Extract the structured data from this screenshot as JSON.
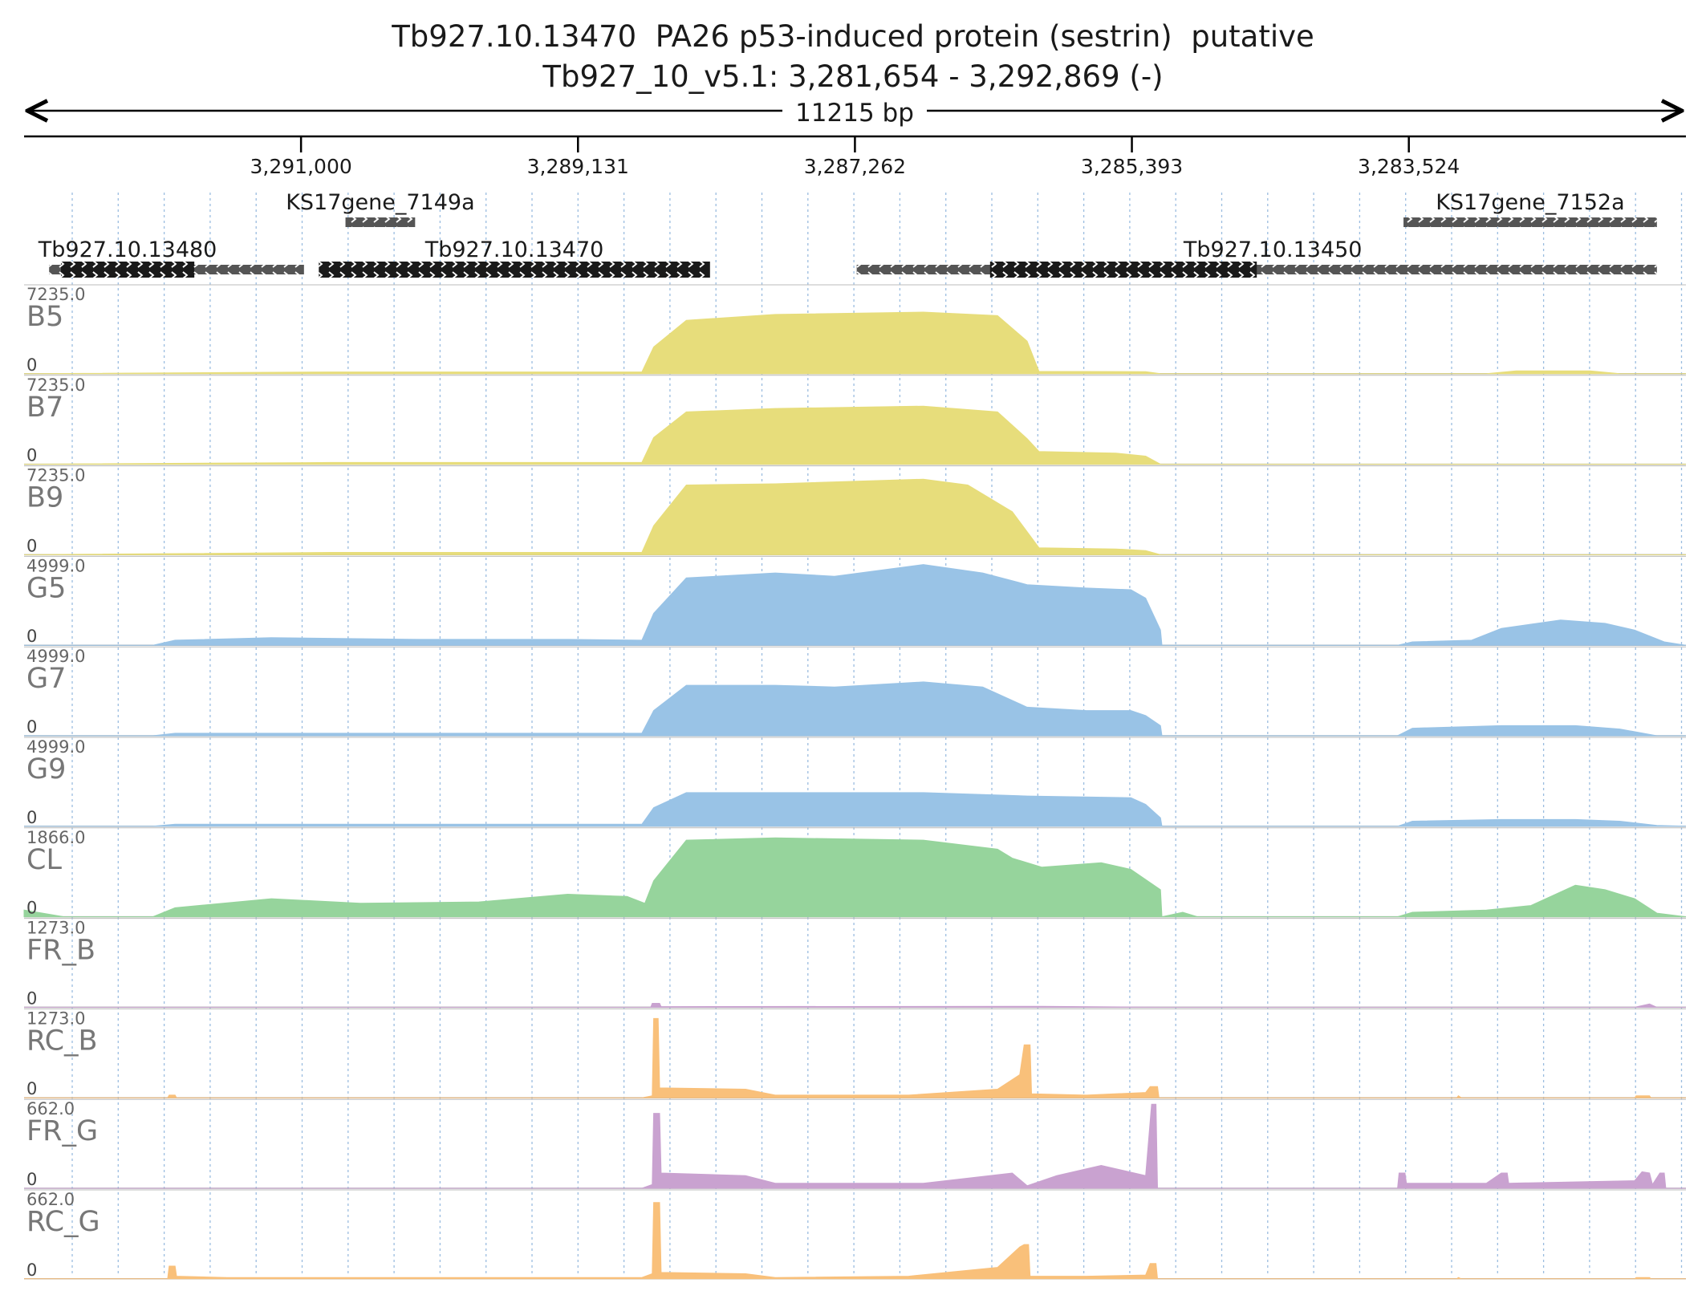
{
  "header": {
    "title": "Tb927.10.13470  PA26 p53-induced protein (sestrin)  putative",
    "locus": "Tb927_10_v5.1: 3,281,654 - 3,292,869 (-)",
    "span_label": "11215 bp"
  },
  "colors": {
    "B": "#e7dd7b",
    "G": "#99c3e6",
    "CL": "#96d49c",
    "FR": "#c9a2d0",
    "RC": "#f9c07a",
    "gene_dark": "#1a1a1a",
    "gene_light": "#555555",
    "grid": "#9bbde0"
  },
  "chart_data": {
    "type": "area",
    "x_axis": {
      "ticks": [
        "3,291,000",
        "3,289,131",
        "3,287,262",
        "3,285,393",
        "3,283,524"
      ],
      "tick_values": [
        3291000,
        3289131,
        3287262,
        3285393,
        3283524
      ],
      "xlim": [
        3292869,
        3281654
      ],
      "reversed": true
    },
    "genes": [
      {
        "name": "KS17gene_7149a",
        "start": 3290700,
        "end": 3290230,
        "row": 1,
        "kind": "light"
      },
      {
        "name": "Tb927.10.13480",
        "start": 3292700,
        "end": 3290980,
        "row": 2,
        "kind": "light",
        "core_start": 3292620,
        "core_end": 3291720
      },
      {
        "name": "Tb927.10.13470",
        "start": 3290880,
        "end": 3288240,
        "row": 2,
        "kind": "dark"
      },
      {
        "name": "Tb927.10.13450",
        "start": 3287250,
        "end": 3281850,
        "row": 2,
        "kind": "light",
        "core_start": 3286350,
        "core_end": 3284550
      },
      {
        "name": "KS17gene_7152a",
        "start": 3283560,
        "end": 3281850,
        "row": 1,
        "kind": "light"
      }
    ],
    "tracks": [
      {
        "name": "B5",
        "max": "7235.0",
        "min": "0",
        "group": "B",
        "ymax": 7235,
        "points": [
          [
            3292869,
            0
          ],
          [
            3290800,
            150
          ],
          [
            3288700,
            150
          ],
          [
            3288620,
            2300
          ],
          [
            3288400,
            4600
          ],
          [
            3287800,
            5100
          ],
          [
            3286800,
            5300
          ],
          [
            3286300,
            5000
          ],
          [
            3286100,
            2800
          ],
          [
            3286020,
            200
          ],
          [
            3285300,
            180
          ],
          [
            3285200,
            0
          ],
          [
            3284200,
            0
          ],
          [
            3283000,
            0
          ],
          [
            3282800,
            250
          ],
          [
            3282300,
            250
          ],
          [
            3282100,
            0
          ],
          [
            3281654,
            0
          ]
        ]
      },
      {
        "name": "B7",
        "max": "7235.0",
        "min": "0",
        "group": "B",
        "ymax": 7235,
        "points": [
          [
            3292869,
            0
          ],
          [
            3290800,
            150
          ],
          [
            3288700,
            150
          ],
          [
            3288620,
            2300
          ],
          [
            3288400,
            4500
          ],
          [
            3287800,
            4800
          ],
          [
            3286800,
            5000
          ],
          [
            3286300,
            4500
          ],
          [
            3286100,
            2200
          ],
          [
            3286020,
            1100
          ],
          [
            3285500,
            950
          ],
          [
            3285300,
            700
          ],
          [
            3285200,
            0
          ],
          [
            3284200,
            0
          ],
          [
            3281654,
            0
          ]
        ]
      },
      {
        "name": "B9",
        "max": "7235.0",
        "min": "0",
        "group": "B",
        "ymax": 7235,
        "points": [
          [
            3292869,
            0
          ],
          [
            3290800,
            200
          ],
          [
            3288700,
            200
          ],
          [
            3288620,
            2500
          ],
          [
            3288400,
            6000
          ],
          [
            3287800,
            6100
          ],
          [
            3286800,
            6500
          ],
          [
            3286500,
            6000
          ],
          [
            3286200,
            3700
          ],
          [
            3286020,
            600
          ],
          [
            3285500,
            500
          ],
          [
            3285300,
            350
          ],
          [
            3285200,
            0
          ],
          [
            3284200,
            0
          ],
          [
            3281654,
            0
          ]
        ]
      },
      {
        "name": "G5",
        "max": "4999.0",
        "min": "0",
        "group": "G",
        "ymax": 4999,
        "points": [
          [
            3292869,
            0
          ],
          [
            3292000,
            0
          ],
          [
            3291850,
            300
          ],
          [
            3291200,
            450
          ],
          [
            3290200,
            350
          ],
          [
            3289200,
            350
          ],
          [
            3288700,
            300
          ],
          [
            3288620,
            1900
          ],
          [
            3288400,
            4000
          ],
          [
            3287800,
            4300
          ],
          [
            3287400,
            4100
          ],
          [
            3286800,
            4800
          ],
          [
            3286400,
            4300
          ],
          [
            3286100,
            3600
          ],
          [
            3285700,
            3400
          ],
          [
            3285400,
            3300
          ],
          [
            3285300,
            2800
          ],
          [
            3285200,
            900
          ],
          [
            3285190,
            0
          ],
          [
            3284200,
            0
          ],
          [
            3283600,
            0
          ],
          [
            3283500,
            200
          ],
          [
            3283100,
            300
          ],
          [
            3282900,
            1000
          ],
          [
            3282500,
            1500
          ],
          [
            3282200,
            1300
          ],
          [
            3282000,
            900
          ],
          [
            3281800,
            200
          ],
          [
            3281654,
            0
          ]
        ]
      },
      {
        "name": "G7",
        "max": "4999.0",
        "min": "0",
        "group": "G",
        "ymax": 4999,
        "points": [
          [
            3292869,
            0
          ],
          [
            3292000,
            0
          ],
          [
            3291850,
            150
          ],
          [
            3289200,
            150
          ],
          [
            3288700,
            150
          ],
          [
            3288620,
            1500
          ],
          [
            3288400,
            3000
          ],
          [
            3287800,
            3000
          ],
          [
            3287400,
            2900
          ],
          [
            3286800,
            3200
          ],
          [
            3286400,
            2900
          ],
          [
            3286100,
            1700
          ],
          [
            3285700,
            1500
          ],
          [
            3285400,
            1500
          ],
          [
            3285300,
            1200
          ],
          [
            3285200,
            600
          ],
          [
            3285190,
            0
          ],
          [
            3283600,
            0
          ],
          [
            3283500,
            450
          ],
          [
            3282900,
            600
          ],
          [
            3282400,
            600
          ],
          [
            3282100,
            400
          ],
          [
            3281850,
            0
          ],
          [
            3281654,
            0
          ]
        ]
      },
      {
        "name": "G9",
        "max": "4999.0",
        "min": "0",
        "group": "G",
        "ymax": 4999,
        "points": [
          [
            3292869,
            0
          ],
          [
            3292000,
            0
          ],
          [
            3291850,
            120
          ],
          [
            3288700,
            120
          ],
          [
            3288620,
            1100
          ],
          [
            3288400,
            2000
          ],
          [
            3287800,
            2000
          ],
          [
            3286800,
            2000
          ],
          [
            3286100,
            1800
          ],
          [
            3285400,
            1700
          ],
          [
            3285300,
            1300
          ],
          [
            3285200,
            500
          ],
          [
            3285190,
            0
          ],
          [
            3283600,
            0
          ],
          [
            3283500,
            300
          ],
          [
            3282900,
            400
          ],
          [
            3282400,
            400
          ],
          [
            3282100,
            300
          ],
          [
            3281850,
            50
          ],
          [
            3281654,
            0
          ]
        ]
      },
      {
        "name": "CL",
        "max": "1866.0",
        "min": "0",
        "group": "CL",
        "ymax": 1866,
        "points": [
          [
            3292869,
            150
          ],
          [
            3292600,
            0
          ],
          [
            3292000,
            0
          ],
          [
            3291850,
            200
          ],
          [
            3291200,
            400
          ],
          [
            3290600,
            300
          ],
          [
            3289800,
            330
          ],
          [
            3289200,
            500
          ],
          [
            3288800,
            450
          ],
          [
            3288680,
            300
          ],
          [
            3288620,
            800
          ],
          [
            3288400,
            1700
          ],
          [
            3287800,
            1750
          ],
          [
            3286800,
            1700
          ],
          [
            3286300,
            1500
          ],
          [
            3286200,
            1300
          ],
          [
            3286000,
            1100
          ],
          [
            3285600,
            1200
          ],
          [
            3285400,
            1050
          ],
          [
            3285200,
            600
          ],
          [
            3285190,
            0
          ],
          [
            3285050,
            100
          ],
          [
            3284950,
            0
          ],
          [
            3283600,
            0
          ],
          [
            3283500,
            100
          ],
          [
            3283000,
            150
          ],
          [
            3282700,
            250
          ],
          [
            3282400,
            700
          ],
          [
            3282200,
            600
          ],
          [
            3282000,
            400
          ],
          [
            3281850,
            80
          ],
          [
            3281654,
            0
          ]
        ]
      },
      {
        "name": "FR_B",
        "max": "1273.0",
        "min": "0",
        "group": "FR",
        "ymax": 1273,
        "points": [
          [
            3292869,
            0
          ],
          [
            3288640,
            0
          ],
          [
            3288630,
            60
          ],
          [
            3288580,
            60
          ],
          [
            3288570,
            10
          ],
          [
            3286000,
            15
          ],
          [
            3285200,
            0
          ],
          [
            3282000,
            0
          ],
          [
            3281900,
            50
          ],
          [
            3281850,
            0
          ],
          [
            3281654,
            0
          ]
        ]
      },
      {
        "name": "RC_B",
        "max": "1273.0",
        "min": "0",
        "group": "RC",
        "ymax": 1273,
        "points": [
          [
            3292869,
            0
          ],
          [
            3291900,
            0
          ],
          [
            3291890,
            40
          ],
          [
            3291850,
            40
          ],
          [
            3291840,
            0
          ],
          [
            3288700,
            0
          ],
          [
            3288630,
            30
          ],
          [
            3288620,
            1200
          ],
          [
            3288590,
            1200
          ],
          [
            3288580,
            150
          ],
          [
            3288000,
            130
          ],
          [
            3287800,
            40
          ],
          [
            3286900,
            40
          ],
          [
            3286300,
            130
          ],
          [
            3286150,
            350
          ],
          [
            3286120,
            800
          ],
          [
            3286080,
            800
          ],
          [
            3286070,
            60
          ],
          [
            3285700,
            40
          ],
          [
            3285300,
            80
          ],
          [
            3285270,
            170
          ],
          [
            3285220,
            170
          ],
          [
            3285210,
            0
          ],
          [
            3283200,
            0
          ],
          [
            3283190,
            30
          ],
          [
            3283170,
            0
          ],
          [
            3282000,
            0
          ],
          [
            3281990,
            30
          ],
          [
            3281900,
            30
          ],
          [
            3281890,
            0
          ],
          [
            3281654,
            0
          ]
        ]
      },
      {
        "name": "FR_G",
        "max": "662.0",
        "min": "0",
        "group": "FR",
        "ymax": 662,
        "points": [
          [
            3292869,
            0
          ],
          [
            3288700,
            0
          ],
          [
            3288630,
            30
          ],
          [
            3288620,
            590
          ],
          [
            3288580,
            590
          ],
          [
            3288570,
            120
          ],
          [
            3288000,
            100
          ],
          [
            3287800,
            40
          ],
          [
            3286800,
            40
          ],
          [
            3286200,
            120
          ],
          [
            3286100,
            20
          ],
          [
            3285900,
            100
          ],
          [
            3285600,
            180
          ],
          [
            3285300,
            100
          ],
          [
            3285260,
            680
          ],
          [
            3285230,
            680
          ],
          [
            3285220,
            0
          ],
          [
            3283600,
            0
          ],
          [
            3283590,
            120
          ],
          [
            3283550,
            120
          ],
          [
            3283540,
            40
          ],
          [
            3283000,
            40
          ],
          [
            3282900,
            120
          ],
          [
            3282860,
            120
          ],
          [
            3282850,
            40
          ],
          [
            3282000,
            60
          ],
          [
            3281950,
            130
          ],
          [
            3281900,
            120
          ],
          [
            3281880,
            30
          ],
          [
            3281830,
            120
          ],
          [
            3281800,
            120
          ],
          [
            3281790,
            0
          ],
          [
            3281654,
            0
          ]
        ]
      },
      {
        "name": "RC_G",
        "max": "662.0",
        "min": "0",
        "group": "RC",
        "ymax": 662,
        "points": [
          [
            3292869,
            0
          ],
          [
            3291900,
            0
          ],
          [
            3291890,
            100
          ],
          [
            3291850,
            100
          ],
          [
            3291840,
            20
          ],
          [
            3291500,
            10
          ],
          [
            3288700,
            10
          ],
          [
            3288630,
            40
          ],
          [
            3288620,
            600
          ],
          [
            3288580,
            600
          ],
          [
            3288570,
            50
          ],
          [
            3288000,
            40
          ],
          [
            3287800,
            10
          ],
          [
            3286900,
            20
          ],
          [
            3286300,
            90
          ],
          [
            3286150,
            250
          ],
          [
            3286120,
            270
          ],
          [
            3286090,
            270
          ],
          [
            3286080,
            20
          ],
          [
            3285700,
            20
          ],
          [
            3285300,
            30
          ],
          [
            3285270,
            120
          ],
          [
            3285230,
            120
          ],
          [
            3285220,
            0
          ],
          [
            3283200,
            0
          ],
          [
            3283190,
            10
          ],
          [
            3283170,
            0
          ],
          [
            3282000,
            0
          ],
          [
            3281990,
            10
          ],
          [
            3281900,
            10
          ],
          [
            3281890,
            0
          ],
          [
            3281654,
            0
          ]
        ]
      }
    ]
  }
}
